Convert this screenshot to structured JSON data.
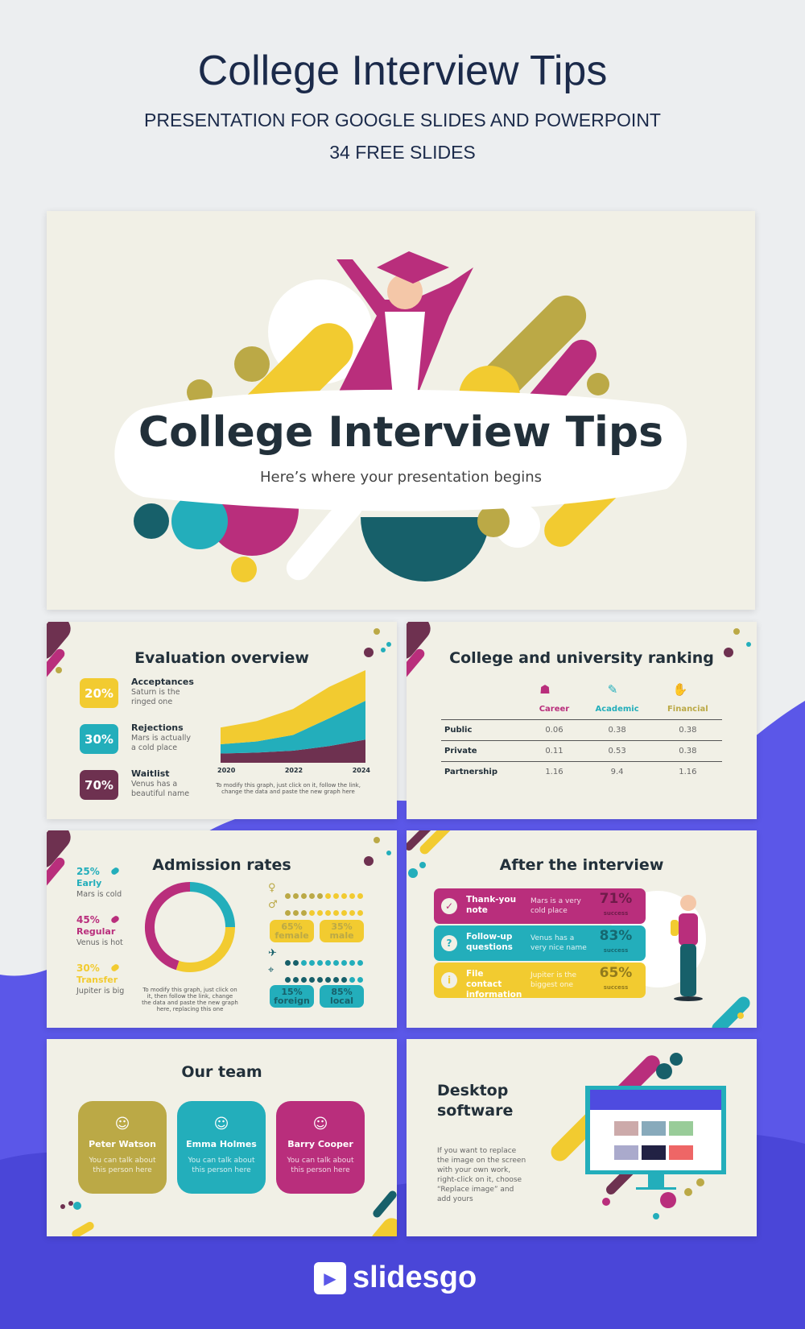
{
  "header": {
    "title": "College Interview Tips",
    "subtitle": "PRESENTATION FOR GOOGLE SLIDES AND POWERPOINT",
    "count": "34 FREE SLIDES"
  },
  "colors": {
    "yellow": "#f2cb30",
    "teal": "#23aebb",
    "magenta": "#b92e7c",
    "maroon": "#6e3150",
    "olive": "#bba946",
    "darkteal": "#17606a",
    "cream": "#f1f0e6",
    "purple": "#5b57e8"
  },
  "cover": {
    "title": "College Interview Tips",
    "subtitle": "Here’s where your presentation begins"
  },
  "evaluation": {
    "title": "Evaluation overview",
    "items": [
      {
        "pct": "20%",
        "label": "Acceptances",
        "text": "Saturn is the ringed one"
      },
      {
        "pct": "30%",
        "label": "Rejections",
        "text": "Mars is actually a cold place"
      },
      {
        "pct": "70%",
        "label": "Waitlist",
        "text": "Venus has a beautiful name"
      }
    ],
    "note": "To modify this graph, just click on it, follow the link, change the data and paste the new graph here"
  },
  "chart_data": [
    {
      "type": "area",
      "stacked": true,
      "x": [
        2020,
        2021,
        2022,
        2023,
        2024
      ],
      "xticks": [
        "2020",
        "2022",
        "2024"
      ],
      "series": [
        {
          "values": [
            10,
            11,
            13,
            18,
            25
          ],
          "color": "#6e3150"
        },
        {
          "values": [
            10,
            12,
            17,
            30,
            42
          ],
          "color": "#23aebb"
        },
        {
          "values": [
            18,
            22,
            28,
            34,
            33
          ],
          "color": "#f2cb30"
        }
      ]
    },
    {
      "type": "pie",
      "donut": true,
      "categories": [
        "Early",
        "Transfer",
        "Regular"
      ],
      "values": [
        25,
        30,
        45
      ],
      "colors": [
        "#23aebb",
        "#f2cb30",
        "#b92e7c"
      ]
    }
  ],
  "ranking": {
    "title": "College and university ranking",
    "columns": [
      {
        "label": "Career",
        "icon": "interview-icon",
        "color": "#b92e7c"
      },
      {
        "label": "Academic",
        "icon": "checklist-icon",
        "color": "#23aebb"
      },
      {
        "label": "Financial",
        "icon": "handshake-icon",
        "color": "#bba946"
      }
    ],
    "rows": [
      {
        "name": "Public",
        "values": [
          "0.06",
          "0.38",
          "0.38"
        ]
      },
      {
        "name": "Private",
        "values": [
          "0.11",
          "0.53",
          "0.38"
        ]
      },
      {
        "name": "Partnership",
        "values": [
          "1.16",
          "9.4",
          "1.16"
        ]
      }
    ]
  },
  "admission": {
    "title": "Admission rates",
    "items": [
      {
        "pct": "25%",
        "label": "Early",
        "text": "Mars is cold",
        "color": "#23aebb"
      },
      {
        "pct": "45%",
        "label": "Regular",
        "text": "Venus is hot",
        "color": "#b92e7c"
      },
      {
        "pct": "30%",
        "label": "Transfer",
        "text": "Jupiter is big",
        "color": "#f2cb30"
      }
    ],
    "note": "To modify this graph, just click on it, then follow the link, change the data and paste the new graph here, replacing this one",
    "gender": [
      {
        "pct": "65%",
        "label": "female"
      },
      {
        "pct": "35%",
        "label": "male"
      }
    ],
    "origin": [
      {
        "pct": "15%",
        "label": "foreign"
      },
      {
        "pct": "85%",
        "label": "local"
      }
    ]
  },
  "after": {
    "title": "After the interview",
    "items": [
      {
        "label": "Thank-you note",
        "text": "Mars is a very cold place",
        "pct": "71%",
        "sub": "success",
        "icon": "check-icon",
        "color": "#b92e7c"
      },
      {
        "label": "Follow-up questions",
        "text": "Venus has a very nice name",
        "pct": "83%",
        "sub": "success",
        "icon": "question-icon",
        "color": "#23aebb"
      },
      {
        "label": "File contact information",
        "text": "Jupiter is the biggest one",
        "pct": "65%",
        "sub": "success",
        "icon": "info-icon",
        "color": "#f2cb30"
      }
    ]
  },
  "team": {
    "title": "Our team",
    "members": [
      {
        "name": "Peter Watson",
        "text": "You can talk about this person here",
        "color": "#bba946"
      },
      {
        "name": "Emma Holmes",
        "text": "You can talk about this person here",
        "color": "#23aebb"
      },
      {
        "name": "Barry Cooper",
        "text": "You can talk about this person here",
        "color": "#b92e7c"
      }
    ]
  },
  "desktop": {
    "title": "Desktop software",
    "text": "If you want to replace the image on the screen with your own work, right-click on it, choose “Replace image” and add yours"
  },
  "brand": {
    "name": "slidesgo"
  }
}
